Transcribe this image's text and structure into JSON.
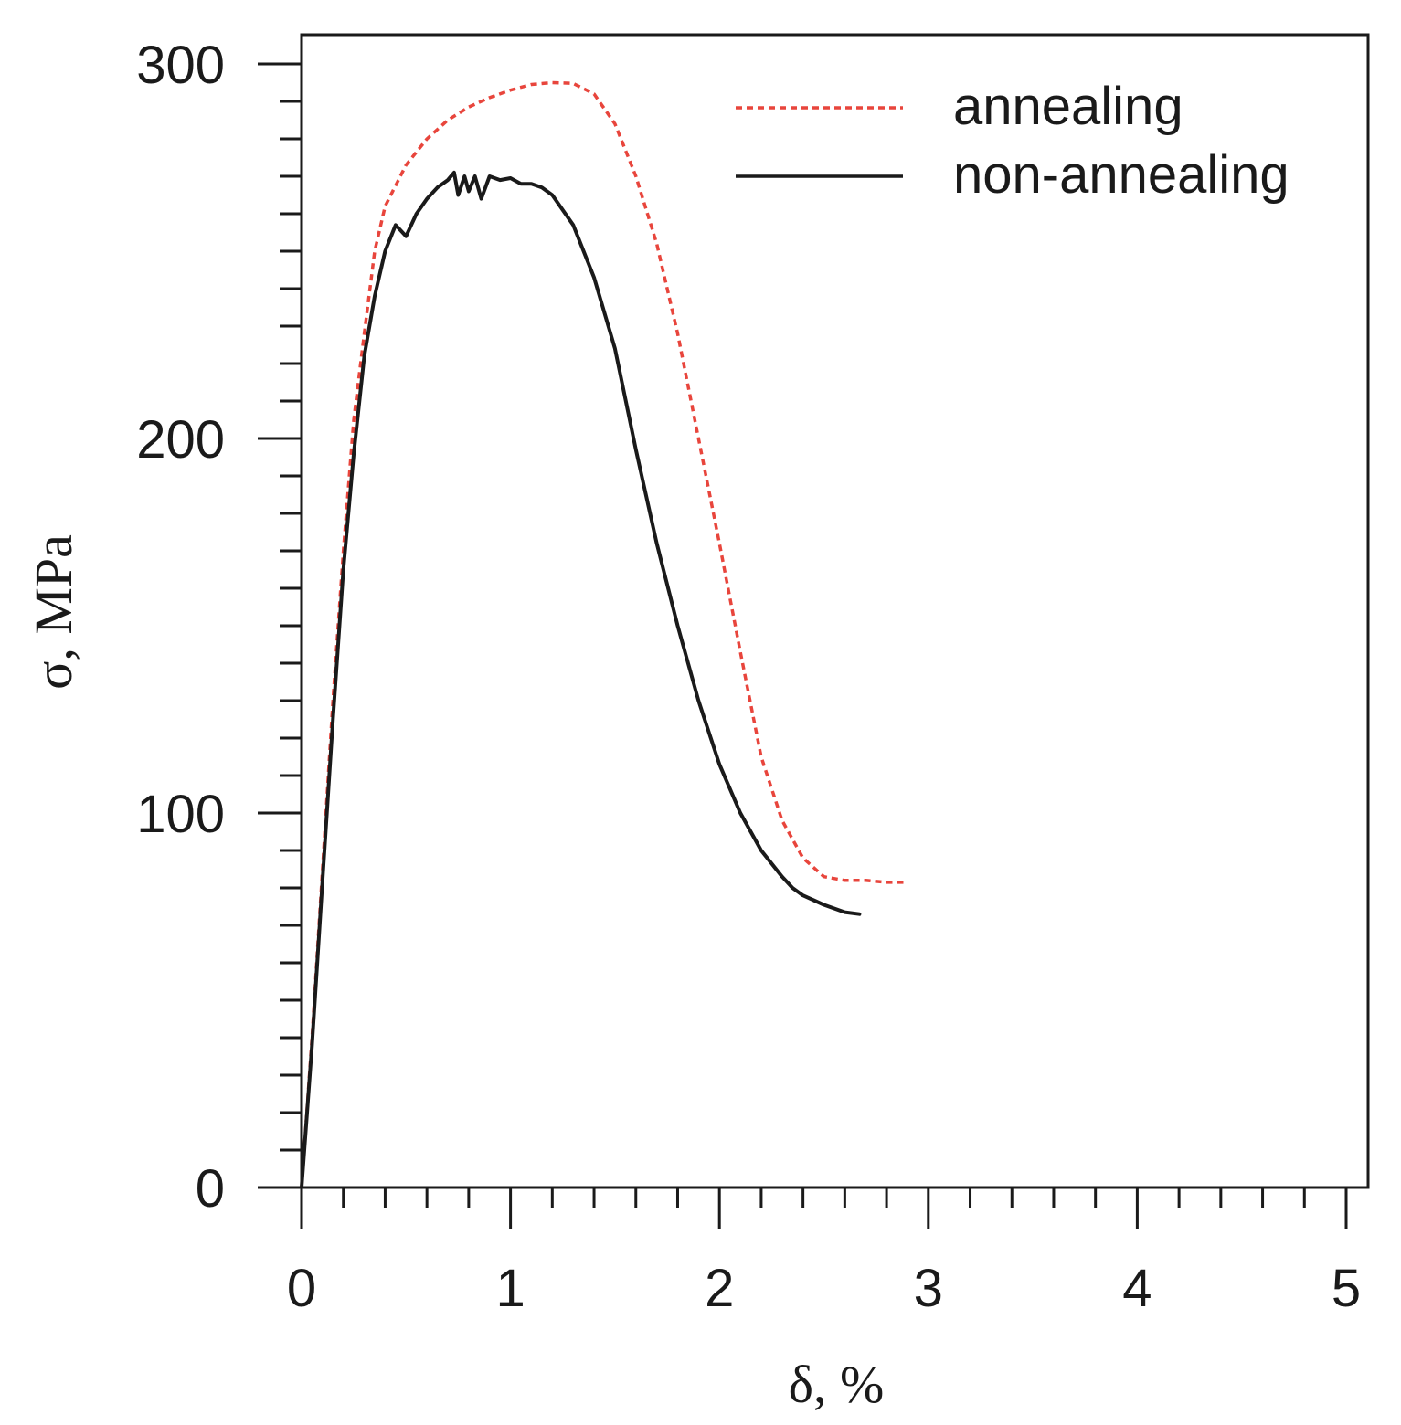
{
  "chart_data": {
    "type": "line",
    "title": "",
    "xlabel": "δ, %",
    "ylabel": "σ, MPa",
    "xlim": [
      0,
      5
    ],
    "ylim": [
      0,
      300
    ],
    "x_ticks": [
      0,
      1,
      2,
      3,
      4,
      5
    ],
    "x_tick_labels": [
      "0",
      "1",
      "2",
      "3",
      "4",
      "5"
    ],
    "x_minor_step": 0.2,
    "y_ticks": [
      0,
      100,
      200,
      300
    ],
    "y_tick_labels": [
      "0",
      "100",
      "200",
      "300"
    ],
    "y_minor_step": 10,
    "grid": false,
    "legend_position": "top-right",
    "series": [
      {
        "name": "annealing",
        "color": "#e8453c",
        "style": "dashed",
        "points": [
          [
            0,
            0
          ],
          [
            0.05,
            40
          ],
          [
            0.1,
            85
          ],
          [
            0.15,
            130
          ],
          [
            0.2,
            170
          ],
          [
            0.25,
            205
          ],
          [
            0.3,
            228
          ],
          [
            0.35,
            250
          ],
          [
            0.4,
            262
          ],
          [
            0.5,
            273
          ],
          [
            0.6,
            280
          ],
          [
            0.7,
            285
          ],
          [
            0.8,
            288.5
          ],
          [
            0.9,
            291
          ],
          [
            1.0,
            293
          ],
          [
            1.1,
            294.5
          ],
          [
            1.2,
            295
          ],
          [
            1.3,
            294.8
          ],
          [
            1.4,
            292
          ],
          [
            1.5,
            284
          ],
          [
            1.6,
            270
          ],
          [
            1.7,
            252
          ],
          [
            1.8,
            228
          ],
          [
            1.9,
            200
          ],
          [
            2.0,
            172
          ],
          [
            2.1,
            143
          ],
          [
            2.2,
            115
          ],
          [
            2.3,
            98
          ],
          [
            2.4,
            88
          ],
          [
            2.5,
            83
          ],
          [
            2.6,
            82
          ],
          [
            2.7,
            82
          ],
          [
            2.8,
            81.5
          ],
          [
            2.9,
            81.5
          ]
        ]
      },
      {
        "name": "non-annealing",
        "color": "#1a1a1a",
        "style": "solid",
        "points": [
          [
            0,
            0
          ],
          [
            0.05,
            38
          ],
          [
            0.1,
            82
          ],
          [
            0.15,
            125
          ],
          [
            0.2,
            165
          ],
          [
            0.25,
            196
          ],
          [
            0.3,
            222
          ],
          [
            0.35,
            238
          ],
          [
            0.4,
            250
          ],
          [
            0.45,
            257
          ],
          [
            0.5,
            254
          ],
          [
            0.55,
            260
          ],
          [
            0.6,
            264
          ],
          [
            0.65,
            267
          ],
          [
            0.7,
            269
          ],
          [
            0.73,
            271
          ],
          [
            0.75,
            265
          ],
          [
            0.78,
            270
          ],
          [
            0.8,
            266
          ],
          [
            0.83,
            270
          ],
          [
            0.86,
            264
          ],
          [
            0.9,
            270
          ],
          [
            0.95,
            269
          ],
          [
            1.0,
            269.5
          ],
          [
            1.05,
            268
          ],
          [
            1.1,
            268
          ],
          [
            1.15,
            267
          ],
          [
            1.2,
            265
          ],
          [
            1.3,
            257
          ],
          [
            1.4,
            243
          ],
          [
            1.5,
            224
          ],
          [
            1.6,
            197
          ],
          [
            1.7,
            172
          ],
          [
            1.8,
            150
          ],
          [
            1.9,
            130
          ],
          [
            2.0,
            113
          ],
          [
            2.1,
            100
          ],
          [
            2.2,
            90
          ],
          [
            2.3,
            83
          ],
          [
            2.35,
            80
          ],
          [
            2.4,
            78
          ],
          [
            2.5,
            75.5
          ],
          [
            2.6,
            73.5
          ],
          [
            2.67,
            73
          ]
        ]
      }
    ]
  }
}
